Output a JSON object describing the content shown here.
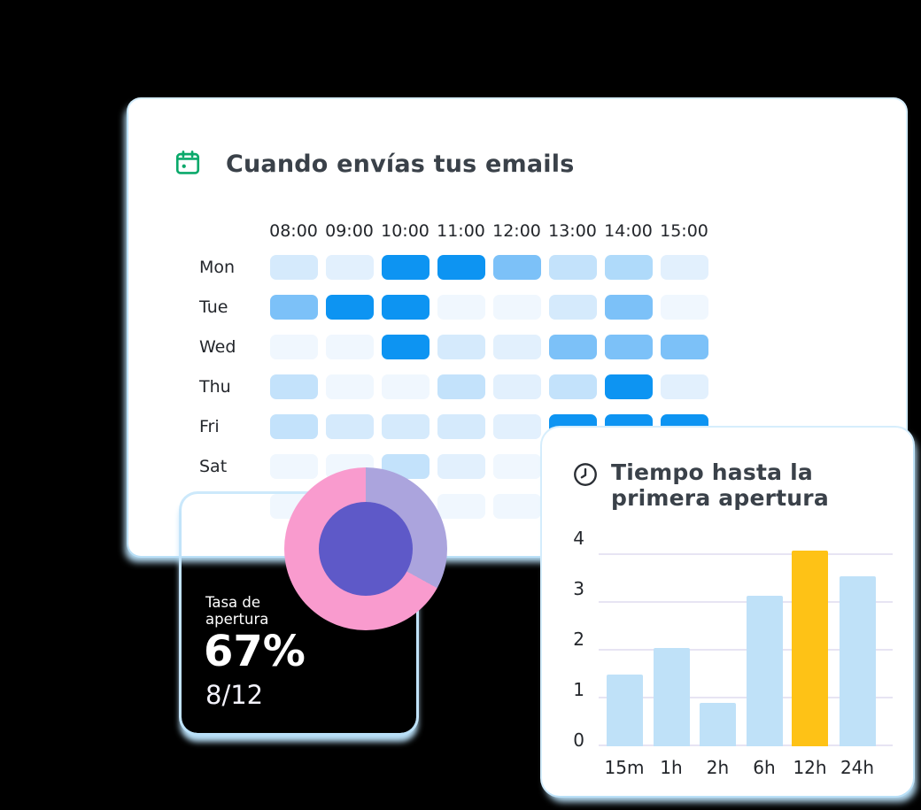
{
  "window": {
    "background": "#000000"
  },
  "cards": {
    "send_time": {
      "icon": "calendar-icon",
      "icon_color": "#0BA96B"
    },
    "open_rate": {
      "background": "#5E59C8",
      "glow_color": "#B9E0F8"
    },
    "first_open": {
      "icon": "clock-icon",
      "icon_color": "#2A2E34"
    }
  },
  "chart_data": [
    {
      "type": "heatmap",
      "title": "Cuando envías tus emails",
      "x_labels": [
        "08:00",
        "09:00",
        "10:00",
        "11:00",
        "12:00",
        "13:00",
        "14:00",
        "15:00"
      ],
      "palette": [
        "#F0F7FE",
        "#E2F0FD",
        "#D5EAFC",
        "#C3E2FB",
        "#AFDAFA",
        "#7CC1F8",
        "#0D94F2"
      ],
      "palette_note": "0 = lowest send volume, 6 = highest send volume",
      "rows": [
        {
          "label": "Mon",
          "levels": [
            2,
            1,
            6,
            6,
            5,
            3,
            4,
            1
          ]
        },
        {
          "label": "Tue",
          "levels": [
            5,
            6,
            6,
            0,
            0,
            2,
            5,
            0
          ]
        },
        {
          "label": "Wed",
          "levels": [
            0,
            0,
            6,
            2,
            1,
            5,
            5,
            5
          ]
        },
        {
          "label": "Thu",
          "levels": [
            3,
            0,
            0,
            3,
            1,
            3,
            6,
            1
          ]
        },
        {
          "label": "Fri",
          "levels": [
            3,
            2,
            2,
            2,
            1,
            6,
            6,
            6
          ]
        },
        {
          "label": "Sat",
          "levels": [
            0,
            0,
            3,
            1,
            0,
            0,
            0,
            0
          ]
        },
        {
          "label": "",
          "levels": [
            0,
            0,
            0,
            0,
            0,
            0,
            0,
            0
          ]
        }
      ]
    },
    {
      "type": "pie",
      "style": "donut",
      "title": "Tasa de apertura",
      "center_label": "67%",
      "sub_label": "8/12",
      "segments": [
        {
          "name": "segment-secondary",
          "value": 33,
          "color": "#ABA4DD"
        },
        {
          "name": "segment-primary",
          "value": 67,
          "color": "#F99BCE"
        }
      ],
      "start": "top",
      "direction": "clockwise",
      "hole_color": "#5E59C8"
    },
    {
      "type": "bar",
      "title_lines": [
        "Tiempo hasta la",
        "primera apertura"
      ],
      "categories": [
        "15m",
        "1h",
        "2h",
        "6h",
        "12h",
        "24h"
      ],
      "values": [
        1.5,
        2.05,
        0.9,
        3.15,
        4.1,
        3.55
      ],
      "y_ticks": [
        4,
        3,
        2,
        1,
        0
      ],
      "ylim": [
        0,
        4
      ],
      "bar_color": "#BFE1F8",
      "highlight_index": 4,
      "highlight_color": "#FEC216",
      "grid_color": "#E7E4F3",
      "legend": "none"
    }
  ]
}
